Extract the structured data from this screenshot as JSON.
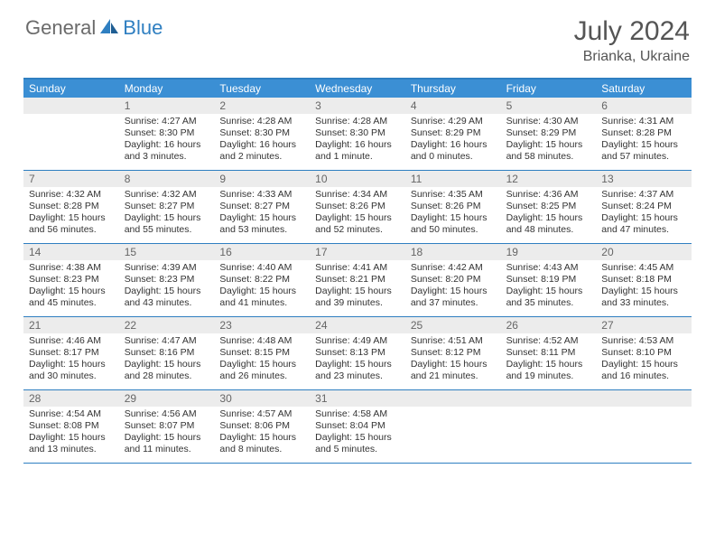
{
  "logo": {
    "part1": "General",
    "part2": "Blue"
  },
  "title": "July 2024",
  "location": "Brianka, Ukraine",
  "colors": {
    "accent": "#3b8fd4",
    "accent_border": "#2f7fc1",
    "band_bg": "#ececec",
    "text": "#333333",
    "muted": "#666666"
  },
  "daysOfWeek": [
    "Sunday",
    "Monday",
    "Tuesday",
    "Wednesday",
    "Thursday",
    "Friday",
    "Saturday"
  ],
  "weeks": [
    [
      {
        "n": "",
        "sunrise": "",
        "sunset": "",
        "daylight": ""
      },
      {
        "n": "1",
        "sunrise": "Sunrise: 4:27 AM",
        "sunset": "Sunset: 8:30 PM",
        "daylight": "Daylight: 16 hours and 3 minutes."
      },
      {
        "n": "2",
        "sunrise": "Sunrise: 4:28 AM",
        "sunset": "Sunset: 8:30 PM",
        "daylight": "Daylight: 16 hours and 2 minutes."
      },
      {
        "n": "3",
        "sunrise": "Sunrise: 4:28 AM",
        "sunset": "Sunset: 8:30 PM",
        "daylight": "Daylight: 16 hours and 1 minute."
      },
      {
        "n": "4",
        "sunrise": "Sunrise: 4:29 AM",
        "sunset": "Sunset: 8:29 PM",
        "daylight": "Daylight: 16 hours and 0 minutes."
      },
      {
        "n": "5",
        "sunrise": "Sunrise: 4:30 AM",
        "sunset": "Sunset: 8:29 PM",
        "daylight": "Daylight: 15 hours and 58 minutes."
      },
      {
        "n": "6",
        "sunrise": "Sunrise: 4:31 AM",
        "sunset": "Sunset: 8:28 PM",
        "daylight": "Daylight: 15 hours and 57 minutes."
      }
    ],
    [
      {
        "n": "7",
        "sunrise": "Sunrise: 4:32 AM",
        "sunset": "Sunset: 8:28 PM",
        "daylight": "Daylight: 15 hours and 56 minutes."
      },
      {
        "n": "8",
        "sunrise": "Sunrise: 4:32 AM",
        "sunset": "Sunset: 8:27 PM",
        "daylight": "Daylight: 15 hours and 55 minutes."
      },
      {
        "n": "9",
        "sunrise": "Sunrise: 4:33 AM",
        "sunset": "Sunset: 8:27 PM",
        "daylight": "Daylight: 15 hours and 53 minutes."
      },
      {
        "n": "10",
        "sunrise": "Sunrise: 4:34 AM",
        "sunset": "Sunset: 8:26 PM",
        "daylight": "Daylight: 15 hours and 52 minutes."
      },
      {
        "n": "11",
        "sunrise": "Sunrise: 4:35 AM",
        "sunset": "Sunset: 8:26 PM",
        "daylight": "Daylight: 15 hours and 50 minutes."
      },
      {
        "n": "12",
        "sunrise": "Sunrise: 4:36 AM",
        "sunset": "Sunset: 8:25 PM",
        "daylight": "Daylight: 15 hours and 48 minutes."
      },
      {
        "n": "13",
        "sunrise": "Sunrise: 4:37 AM",
        "sunset": "Sunset: 8:24 PM",
        "daylight": "Daylight: 15 hours and 47 minutes."
      }
    ],
    [
      {
        "n": "14",
        "sunrise": "Sunrise: 4:38 AM",
        "sunset": "Sunset: 8:23 PM",
        "daylight": "Daylight: 15 hours and 45 minutes."
      },
      {
        "n": "15",
        "sunrise": "Sunrise: 4:39 AM",
        "sunset": "Sunset: 8:23 PM",
        "daylight": "Daylight: 15 hours and 43 minutes."
      },
      {
        "n": "16",
        "sunrise": "Sunrise: 4:40 AM",
        "sunset": "Sunset: 8:22 PM",
        "daylight": "Daylight: 15 hours and 41 minutes."
      },
      {
        "n": "17",
        "sunrise": "Sunrise: 4:41 AM",
        "sunset": "Sunset: 8:21 PM",
        "daylight": "Daylight: 15 hours and 39 minutes."
      },
      {
        "n": "18",
        "sunrise": "Sunrise: 4:42 AM",
        "sunset": "Sunset: 8:20 PM",
        "daylight": "Daylight: 15 hours and 37 minutes."
      },
      {
        "n": "19",
        "sunrise": "Sunrise: 4:43 AM",
        "sunset": "Sunset: 8:19 PM",
        "daylight": "Daylight: 15 hours and 35 minutes."
      },
      {
        "n": "20",
        "sunrise": "Sunrise: 4:45 AM",
        "sunset": "Sunset: 8:18 PM",
        "daylight": "Daylight: 15 hours and 33 minutes."
      }
    ],
    [
      {
        "n": "21",
        "sunrise": "Sunrise: 4:46 AM",
        "sunset": "Sunset: 8:17 PM",
        "daylight": "Daylight: 15 hours and 30 minutes."
      },
      {
        "n": "22",
        "sunrise": "Sunrise: 4:47 AM",
        "sunset": "Sunset: 8:16 PM",
        "daylight": "Daylight: 15 hours and 28 minutes."
      },
      {
        "n": "23",
        "sunrise": "Sunrise: 4:48 AM",
        "sunset": "Sunset: 8:15 PM",
        "daylight": "Daylight: 15 hours and 26 minutes."
      },
      {
        "n": "24",
        "sunrise": "Sunrise: 4:49 AM",
        "sunset": "Sunset: 8:13 PM",
        "daylight": "Daylight: 15 hours and 23 minutes."
      },
      {
        "n": "25",
        "sunrise": "Sunrise: 4:51 AM",
        "sunset": "Sunset: 8:12 PM",
        "daylight": "Daylight: 15 hours and 21 minutes."
      },
      {
        "n": "26",
        "sunrise": "Sunrise: 4:52 AM",
        "sunset": "Sunset: 8:11 PM",
        "daylight": "Daylight: 15 hours and 19 minutes."
      },
      {
        "n": "27",
        "sunrise": "Sunrise: 4:53 AM",
        "sunset": "Sunset: 8:10 PM",
        "daylight": "Daylight: 15 hours and 16 minutes."
      }
    ],
    [
      {
        "n": "28",
        "sunrise": "Sunrise: 4:54 AM",
        "sunset": "Sunset: 8:08 PM",
        "daylight": "Daylight: 15 hours and 13 minutes."
      },
      {
        "n": "29",
        "sunrise": "Sunrise: 4:56 AM",
        "sunset": "Sunset: 8:07 PM",
        "daylight": "Daylight: 15 hours and 11 minutes."
      },
      {
        "n": "30",
        "sunrise": "Sunrise: 4:57 AM",
        "sunset": "Sunset: 8:06 PM",
        "daylight": "Daylight: 15 hours and 8 minutes."
      },
      {
        "n": "31",
        "sunrise": "Sunrise: 4:58 AM",
        "sunset": "Sunset: 8:04 PM",
        "daylight": "Daylight: 15 hours and 5 minutes."
      },
      {
        "n": "",
        "sunrise": "",
        "sunset": "",
        "daylight": ""
      },
      {
        "n": "",
        "sunrise": "",
        "sunset": "",
        "daylight": ""
      },
      {
        "n": "",
        "sunrise": "",
        "sunset": "",
        "daylight": ""
      }
    ]
  ]
}
